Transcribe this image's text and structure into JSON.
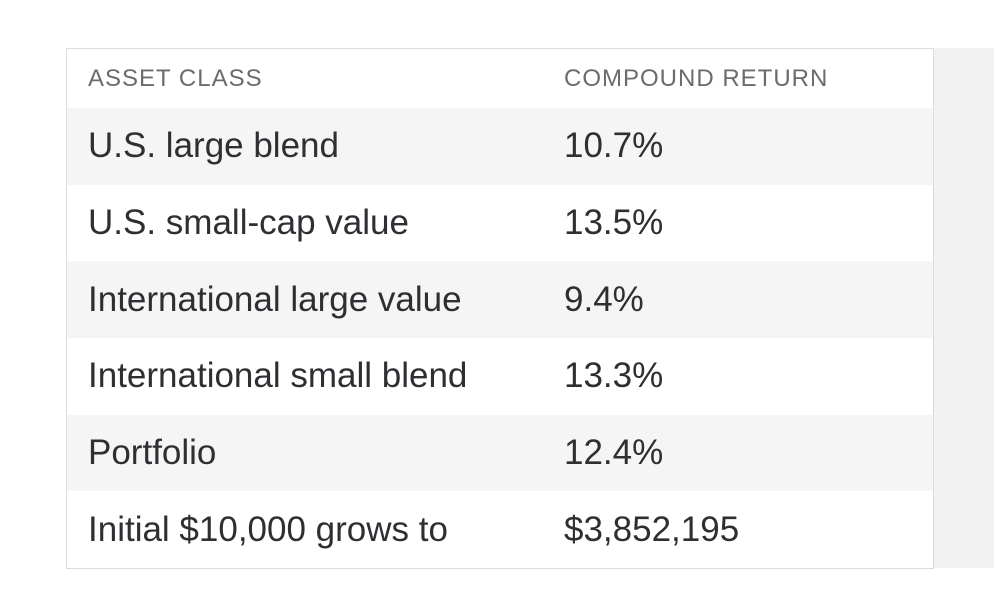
{
  "table": {
    "headers": [
      "ASSET CLASS",
      "COMPOUND RETURN"
    ],
    "rows": [
      [
        "U.S. large blend",
        "10.7%"
      ],
      [
        "U.S. small-cap value",
        "13.5%"
      ],
      [
        "International large value",
        "9.4%"
      ],
      [
        "International small blend",
        "13.3%"
      ],
      [
        "Portfolio",
        "12.4%"
      ],
      [
        "Initial $10,000 grows to",
        "$3,852,195"
      ]
    ]
  }
}
